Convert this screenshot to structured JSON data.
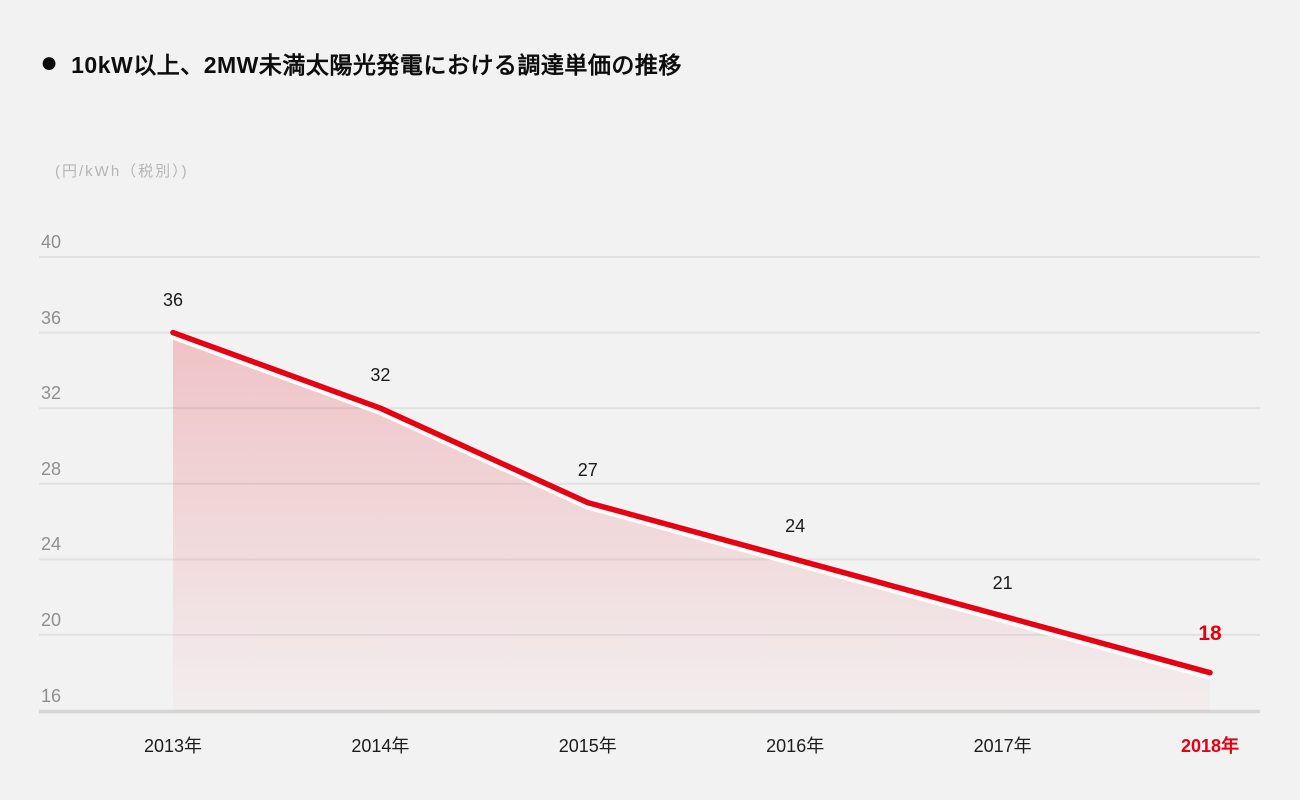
{
  "header": {
    "bullet": "●",
    "title": "10kW以上、2MW未満太陽光発電における調達単価の推移"
  },
  "chart_data": {
    "type": "area",
    "title": "10kW以上、2MW未満太陽光発電における調達単価の推移",
    "unit_label": "(円/kWh（税別）)",
    "ylabel": "円/kWh（税別）",
    "xlabel": "",
    "categories": [
      "2013年",
      "2014年",
      "2015年",
      "2016年",
      "2017年",
      "2018年"
    ],
    "values": [
      36,
      32,
      27,
      24,
      21,
      18
    ],
    "y_ticks": [
      40,
      36,
      32,
      28,
      24,
      20,
      16
    ],
    "ylim": [
      16,
      40
    ],
    "grid": true,
    "legend_position": "none",
    "line_color": "#e60012",
    "line_underlay_color": "#ffffff",
    "area_fill_color": "#e60012",
    "background_color": "#f2f2f2",
    "gridline_color": "#e2e2e2",
    "axis_line_color": "#d6d6d6",
    "tick_label_color": "#8f8f8f",
    "data_label_color": "#1a1a1a",
    "highlight_color": "#e60012",
    "highlight_last_point": true
  }
}
